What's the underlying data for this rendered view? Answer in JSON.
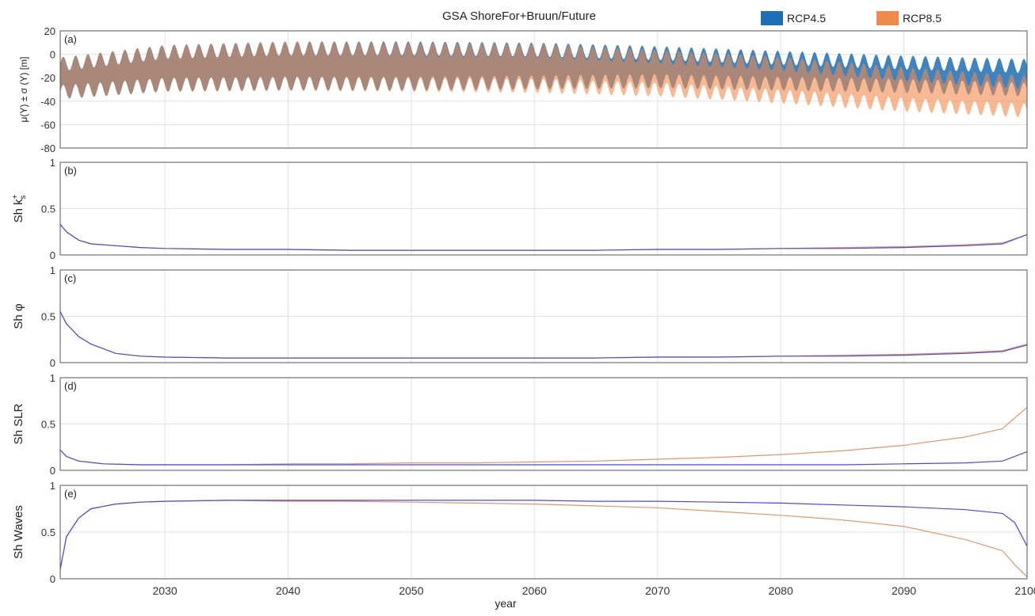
{
  "title": "GSA ShoreFor+Bruun/Future",
  "legend": [
    {
      "label": "RCP4.5",
      "color": "#1f6fb4"
    },
    {
      "label": "RCP8.5",
      "color": "#f08a4b"
    }
  ],
  "line_colors": {
    "RCP4.5": "#4a4ae0",
    "RCP8.5": "#e0956a"
  },
  "chart_data": [
    {
      "id": "a",
      "panel_label": "(a)",
      "type": "area",
      "ylabel": "μ(Y) ± σ (Y) [m]",
      "ylim": [
        -80,
        20
      ],
      "yticks": [
        20,
        0,
        -20,
        -40,
        -60,
        -80
      ],
      "xlim": [
        2021.5,
        2100
      ],
      "grid": true,
      "description_points": {
        "x": [
          2022,
          2030,
          2040,
          2050,
          2060,
          2070,
          2080,
          2090,
          2100
        ],
        "rcp45_mean": [
          -20,
          -12,
          -10,
          -10,
          -10,
          -11,
          -14,
          -17,
          -20
        ],
        "rcp45_std": [
          12,
          14,
          15,
          15,
          14,
          12,
          11,
          10,
          10
        ],
        "rcp85_mean": [
          -20,
          -12,
          -10,
          -11,
          -12,
          -16,
          -22,
          -30,
          -36
        ],
        "rcp85_std": [
          12,
          14,
          15,
          15,
          15,
          14,
          14,
          13,
          12
        ]
      }
    },
    {
      "id": "b",
      "panel_label": "(b)",
      "type": "line",
      "ylabel": "Sh k",
      "ylim": [
        0,
        1
      ],
      "yticks": [
        1,
        0.5,
        0
      ],
      "ytick_labels": [
        "1",
        "0.5",
        "0"
      ],
      "xlim": [
        2021.5,
        2100
      ],
      "grid": true,
      "x": [
        2021.5,
        2022,
        2023,
        2024,
        2026,
        2028,
        2030,
        2035,
        2040,
        2045,
        2050,
        2055,
        2060,
        2065,
        2070,
        2075,
        2080,
        2085,
        2090,
        2095,
        2098,
        2100
      ],
      "series": [
        {
          "name": "RCP4.5",
          "values": [
            0.33,
            0.25,
            0.16,
            0.12,
            0.1,
            0.08,
            0.07,
            0.06,
            0.06,
            0.05,
            0.05,
            0.05,
            0.05,
            0.05,
            0.06,
            0.06,
            0.07,
            0.07,
            0.08,
            0.1,
            0.12,
            0.22
          ]
        },
        {
          "name": "RCP8.5",
          "values": [
            0.33,
            0.25,
            0.16,
            0.12,
            0.1,
            0.08,
            0.07,
            0.06,
            0.06,
            0.05,
            0.05,
            0.05,
            0.05,
            0.05,
            0.06,
            0.06,
            0.07,
            0.08,
            0.09,
            0.11,
            0.13,
            0.22
          ]
        }
      ]
    },
    {
      "id": "c",
      "panel_label": "(c)",
      "type": "line",
      "ylabel": "Sh φ",
      "ylim": [
        0,
        1
      ],
      "yticks": [
        1,
        0.5,
        0
      ],
      "ytick_labels": [
        "1",
        "0.5",
        "0"
      ],
      "xlim": [
        2021.5,
        2100
      ],
      "grid": true,
      "x": [
        2021.5,
        2022,
        2023,
        2024,
        2026,
        2028,
        2030,
        2035,
        2040,
        2045,
        2050,
        2055,
        2060,
        2065,
        2070,
        2075,
        2080,
        2085,
        2090,
        2095,
        2098,
        2100
      ],
      "series": [
        {
          "name": "RCP4.5",
          "values": [
            0.55,
            0.42,
            0.28,
            0.2,
            0.1,
            0.07,
            0.06,
            0.05,
            0.05,
            0.05,
            0.05,
            0.05,
            0.05,
            0.05,
            0.06,
            0.06,
            0.07,
            0.07,
            0.08,
            0.1,
            0.12,
            0.19
          ]
        },
        {
          "name": "RCP8.5",
          "values": [
            0.55,
            0.42,
            0.28,
            0.2,
            0.1,
            0.07,
            0.06,
            0.05,
            0.05,
            0.05,
            0.05,
            0.05,
            0.05,
            0.05,
            0.06,
            0.06,
            0.07,
            0.08,
            0.09,
            0.11,
            0.13,
            0.2
          ]
        }
      ]
    },
    {
      "id": "d",
      "panel_label": "(d)",
      "type": "line",
      "ylabel": "Sh SLR",
      "ylim": [
        0,
        1
      ],
      "yticks": [
        1,
        0.5,
        0
      ],
      "ytick_labels": [
        "1",
        "0.5",
        "0"
      ],
      "xlim": [
        2021.5,
        2100
      ],
      "grid": true,
      "x": [
        2021.5,
        2022,
        2023,
        2025,
        2028,
        2030,
        2035,
        2040,
        2045,
        2050,
        2055,
        2060,
        2065,
        2070,
        2075,
        2080,
        2085,
        2090,
        2095,
        2098,
        2100
      ],
      "series": [
        {
          "name": "RCP4.5",
          "values": [
            0.22,
            0.15,
            0.1,
            0.07,
            0.06,
            0.06,
            0.06,
            0.06,
            0.06,
            0.06,
            0.06,
            0.06,
            0.06,
            0.06,
            0.06,
            0.06,
            0.06,
            0.07,
            0.08,
            0.1,
            0.2
          ]
        },
        {
          "name": "RCP8.5",
          "values": [
            0.22,
            0.15,
            0.1,
            0.07,
            0.06,
            0.06,
            0.06,
            0.07,
            0.07,
            0.08,
            0.08,
            0.09,
            0.1,
            0.12,
            0.14,
            0.17,
            0.21,
            0.27,
            0.36,
            0.45,
            0.68
          ]
        }
      ]
    },
    {
      "id": "e",
      "panel_label": "(e)",
      "type": "line",
      "ylabel": "Sh Waves",
      "ylim": [
        0,
        1
      ],
      "yticks": [
        1,
        0.5,
        0
      ],
      "ytick_labels": [
        "1",
        "0.5",
        "0"
      ],
      "xlim": [
        2021.5,
        2100
      ],
      "grid": true,
      "xlabel": "year",
      "xticks": [
        2030,
        2040,
        2050,
        2060,
        2070,
        2080,
        2090,
        2100
      ],
      "x": [
        2021.5,
        2022,
        2023,
        2024,
        2026,
        2028,
        2030,
        2035,
        2040,
        2045,
        2050,
        2055,
        2060,
        2065,
        2070,
        2075,
        2080,
        2085,
        2090,
        2095,
        2098,
        2099,
        2100
      ],
      "series": [
        {
          "name": "RCP4.5",
          "values": [
            0.1,
            0.45,
            0.65,
            0.75,
            0.8,
            0.82,
            0.83,
            0.84,
            0.84,
            0.84,
            0.84,
            0.84,
            0.84,
            0.83,
            0.83,
            0.82,
            0.81,
            0.79,
            0.77,
            0.74,
            0.7,
            0.6,
            0.35
          ]
        },
        {
          "name": "RCP8.5",
          "values": [
            0.1,
            0.45,
            0.65,
            0.75,
            0.8,
            0.82,
            0.83,
            0.84,
            0.83,
            0.83,
            0.82,
            0.81,
            0.8,
            0.78,
            0.76,
            0.72,
            0.68,
            0.63,
            0.56,
            0.42,
            0.3,
            0.15,
            0.02
          ]
        }
      ]
    }
  ]
}
